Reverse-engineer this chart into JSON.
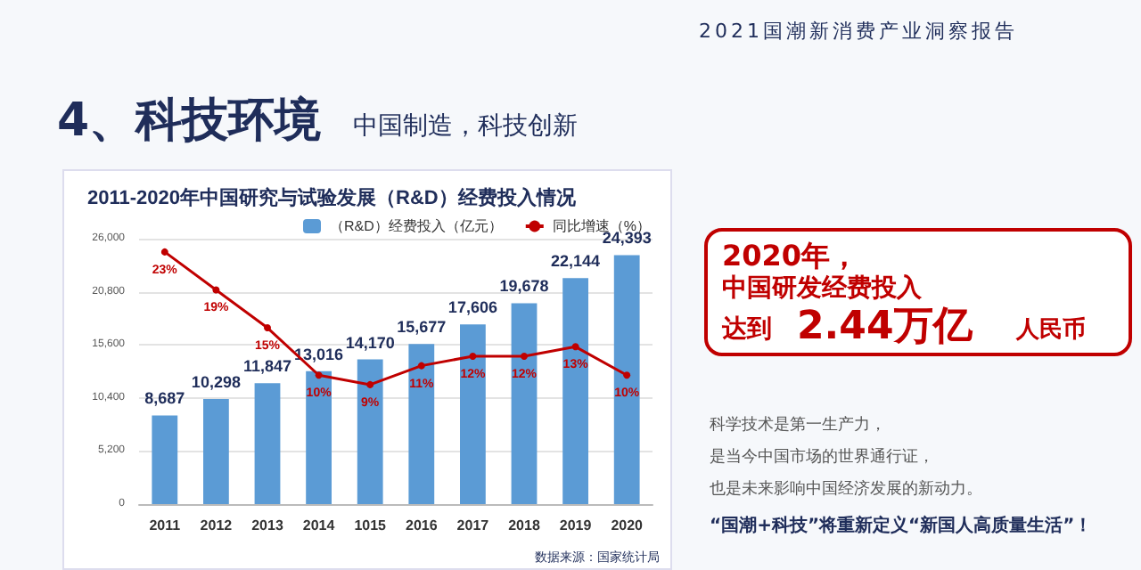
{
  "chart_data": {
    "type": "bar",
    "title": "2011-2020年中国研究与试验发展（R&D）经费投入情况",
    "categories": [
      "2011",
      "2012",
      "2013",
      "2014",
      "1015",
      "2016",
      "2017",
      "2018",
      "2019",
      "2020"
    ],
    "series": [
      {
        "name": "（R&D）经费投入（亿元）",
        "color": "#5b9bd5",
        "values": [
          8687,
          10298,
          11847,
          13016,
          14170,
          15677,
          17606,
          19678,
          22144,
          24393
        ],
        "value_labels": [
          "8,687",
          "10,298",
          "11,847",
          "13,016",
          "14,170",
          "15,677",
          "17,606",
          "19,678",
          "22,144",
          "24,393"
        ]
      },
      {
        "name": "同比增速（%）",
        "type": "line",
        "axis": "y2",
        "color": "#c00000",
        "marker": "circle",
        "values": [
          23,
          19,
          15,
          10,
          9,
          11,
          12,
          12,
          13,
          10
        ],
        "value_labels": [
          "23%",
          "19%",
          "15%",
          "10%",
          "9%",
          "11%",
          "12%",
          "12%",
          "13%",
          "10%"
        ]
      }
    ],
    "ylim": [
      0,
      26000
    ],
    "yticks": [
      0,
      {
        "value": 5200,
        "label": "5,200"
      },
      {
        "value": 10400,
        "label": "10,400"
      },
      {
        "value": 15600,
        "label": "15,600"
      },
      {
        "value": 20800,
        "label": "20,800"
      },
      {
        "value": 26000,
        "label": "26,000"
      }
    ],
    "grid": "y",
    "legend": "top right",
    "annotations": [
      "2021国潮新消费产业洞察报告",
      "4、科技环境",
      "中国制造，科技创新",
      "数据来源：国家统计局",
      "2020年，",
      "中国研发经费投入",
      "达到",
      "2.44万亿",
      "人民币",
      "科学技术是第一生产力，",
      "是当今中国市场的世界通行证，",
      "也是未来影响中国经济发展的新动力。",
      "“国潮+科技”将重新定义“新国人高质量生活”！"
    ]
  }
}
